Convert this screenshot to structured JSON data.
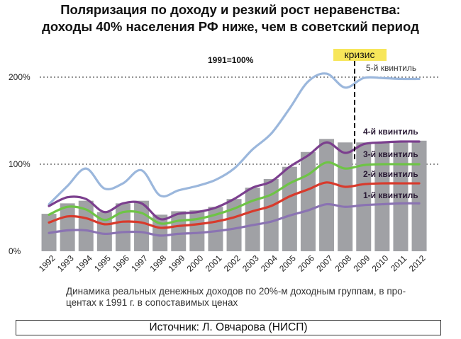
{
  "title": {
    "line1": "Поляризация по доходу и резкий рост неравенства:",
    "line2": "доходы 40% населения РФ ниже, чем в советский период"
  },
  "chart_data": {
    "type": "bar",
    "base_label": "1991=100%",
    "crisis_label": "кризис",
    "categories": [
      "1992",
      "1993",
      "1994",
      "1995",
      "1996",
      "1997",
      "1998",
      "1999",
      "2000",
      "2001",
      "2002",
      "2003",
      "2004",
      "2005",
      "2006",
      "2007",
      "2008",
      "2009",
      "2010",
      "2011",
      "2012"
    ],
    "bar_values": [
      43,
      55,
      58,
      45,
      55,
      58,
      42,
      46,
      47,
      51,
      60,
      73,
      83,
      97,
      114,
      129,
      125,
      125,
      125,
      125,
      127
    ],
    "y_ticks": [
      {
        "value": 0,
        "label": "0%"
      },
      {
        "value": 100,
        "label": "100%"
      },
      {
        "value": 200,
        "label": "200%"
      }
    ],
    "ylim": [
      0,
      210
    ],
    "series": [
      {
        "name": "5-й квинтиль",
        "color": "#9bb7dc",
        "values": [
          54,
          75,
          95,
          72,
          78,
          93,
          64,
          70,
          75,
          82,
          95,
          117,
          135,
          164,
          195,
          204,
          188,
          199,
          199,
          198,
          198
        ]
      },
      {
        "name": "4-й квинтиль",
        "color": "#7b3f8e",
        "values": [
          52,
          62,
          60,
          45,
          55,
          55,
          37,
          43,
          45,
          50,
          60,
          73,
          80,
          97,
          110,
          125,
          113,
          123,
          125,
          126,
          126
        ]
      },
      {
        "name": "3-й квинтиль",
        "color": "#6ec446",
        "values": [
          42,
          51,
          48,
          36,
          45,
          44,
          32,
          35,
          37,
          42,
          49,
          58,
          65,
          78,
          88,
          102,
          95,
          99,
          100,
          100,
          100
        ]
      },
      {
        "name": "2-й квинтиль",
        "color": "#d83a2c",
        "values": [
          33,
          40,
          38,
          31,
          34,
          33,
          27,
          29,
          31,
          34,
          39,
          46,
          52,
          63,
          71,
          79,
          74,
          77,
          78,
          78,
          78
        ]
      },
      {
        "name": "1-й квинтиль",
        "color": "#8a73b2",
        "values": [
          21,
          24,
          24,
          20,
          22,
          22,
          18,
          20,
          21,
          23,
          26,
          30,
          34,
          41,
          47,
          54,
          51,
          53,
          54,
          55,
          55
        ]
      }
    ],
    "series_labels": [
      {
        "text": "5-й квинтиль",
        "color": "#333333"
      },
      {
        "text": "4-й квинтиль",
        "color": "#2a1a35"
      },
      {
        "text": "3-й квинтиль",
        "color": "#2a1a35"
      },
      {
        "text": "2-й квинтиль",
        "color": "#2a1a35"
      },
      {
        "text": "1-й квинтиль",
        "color": "#2a1a35"
      }
    ]
  },
  "caption": {
    "line1": "Динамика реальных денежных доходов по 20%-м доходным группам, в про-",
    "line2": "центах к 1991 г. в сопоставимых ценах"
  },
  "source": "Источник: Л. Овчарова (НИСП)",
  "colors": {
    "bar": "#a0a1a5",
    "crisis_fill": "#f7e65a",
    "grid": "#555555"
  }
}
